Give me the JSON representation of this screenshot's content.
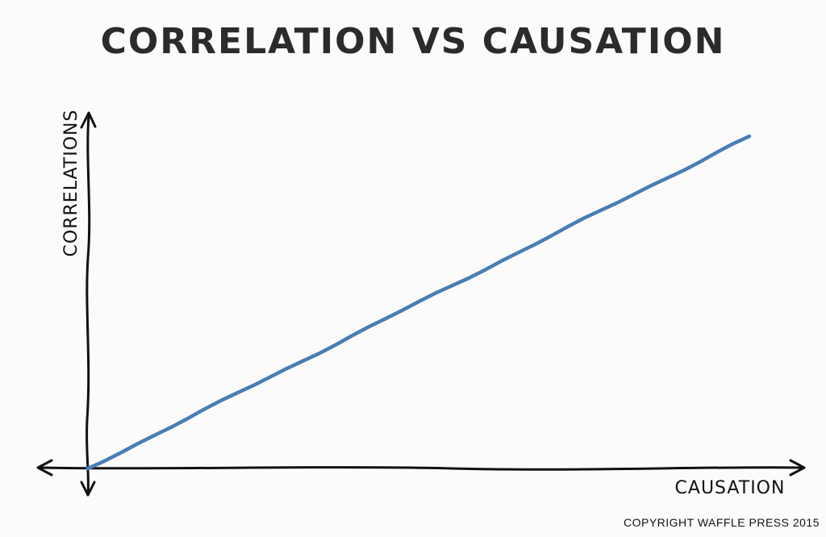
{
  "chart_data": {
    "type": "line",
    "title": "CORRELATION VS CAUSATION",
    "xlabel": "CAUSATION",
    "ylabel": "CORRELATIONS",
    "series": [
      {
        "x": [
          0,
          100
        ],
        "y": [
          0,
          100
        ]
      }
    ],
    "xlim": [
      0,
      100
    ],
    "ylim": [
      0,
      100
    ],
    "grid": false,
    "ticks": false,
    "line_color": "#4a7db5"
  },
  "footer": {
    "copyright": "COPYRIGHT WAFFLE PRESS 2015"
  }
}
